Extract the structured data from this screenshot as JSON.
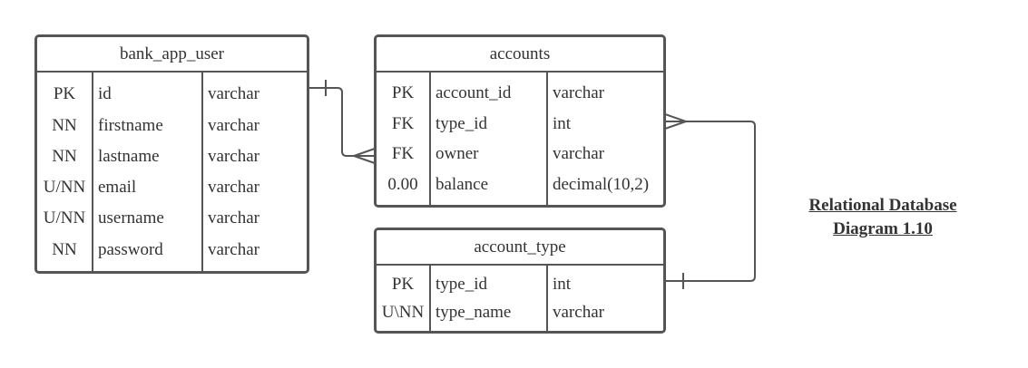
{
  "caption": {
    "line1": "Relational Database",
    "line2": "Diagram 1.10"
  },
  "entities": {
    "bank_app_user": {
      "title": "bank_app_user",
      "rows": [
        {
          "key": "PK",
          "name": "id",
          "type": "varchar"
        },
        {
          "key": "NN",
          "name": "firstname",
          "type": "varchar"
        },
        {
          "key": "NN",
          "name": "lastname",
          "type": "varchar"
        },
        {
          "key": "U/NN",
          "name": "email",
          "type": "varchar"
        },
        {
          "key": "U/NN",
          "name": "username",
          "type": "varchar"
        },
        {
          "key": "NN",
          "name": "password",
          "type": "varchar"
        }
      ]
    },
    "accounts": {
      "title": "accounts",
      "rows": [
        {
          "key": "PK",
          "name": "account_id",
          "type": "varchar"
        },
        {
          "key": "FK",
          "name": "type_id",
          "type": "int"
        },
        {
          "key": "FK",
          "name": "owner",
          "type": "varchar"
        },
        {
          "key": "0.00",
          "name": "balance",
          "type": "decimal(10,2)"
        }
      ]
    },
    "account_type": {
      "title": "account_type",
      "rows": [
        {
          "key": "PK",
          "name": "type_id",
          "type": "int"
        },
        {
          "key": "U\\NN",
          "name": "type_name",
          "type": "varchar"
        }
      ]
    }
  },
  "relationships": [
    {
      "from": "bank_app_user.id",
      "to": "accounts.owner",
      "from_end": "one",
      "to_end": "many"
    },
    {
      "from": "account_type.type_id",
      "to": "accounts.type_id",
      "from_end": "one",
      "to_end": "many"
    }
  ],
  "colors": {
    "border": "#555555",
    "text": "#333333",
    "background": "#ffffff"
  }
}
